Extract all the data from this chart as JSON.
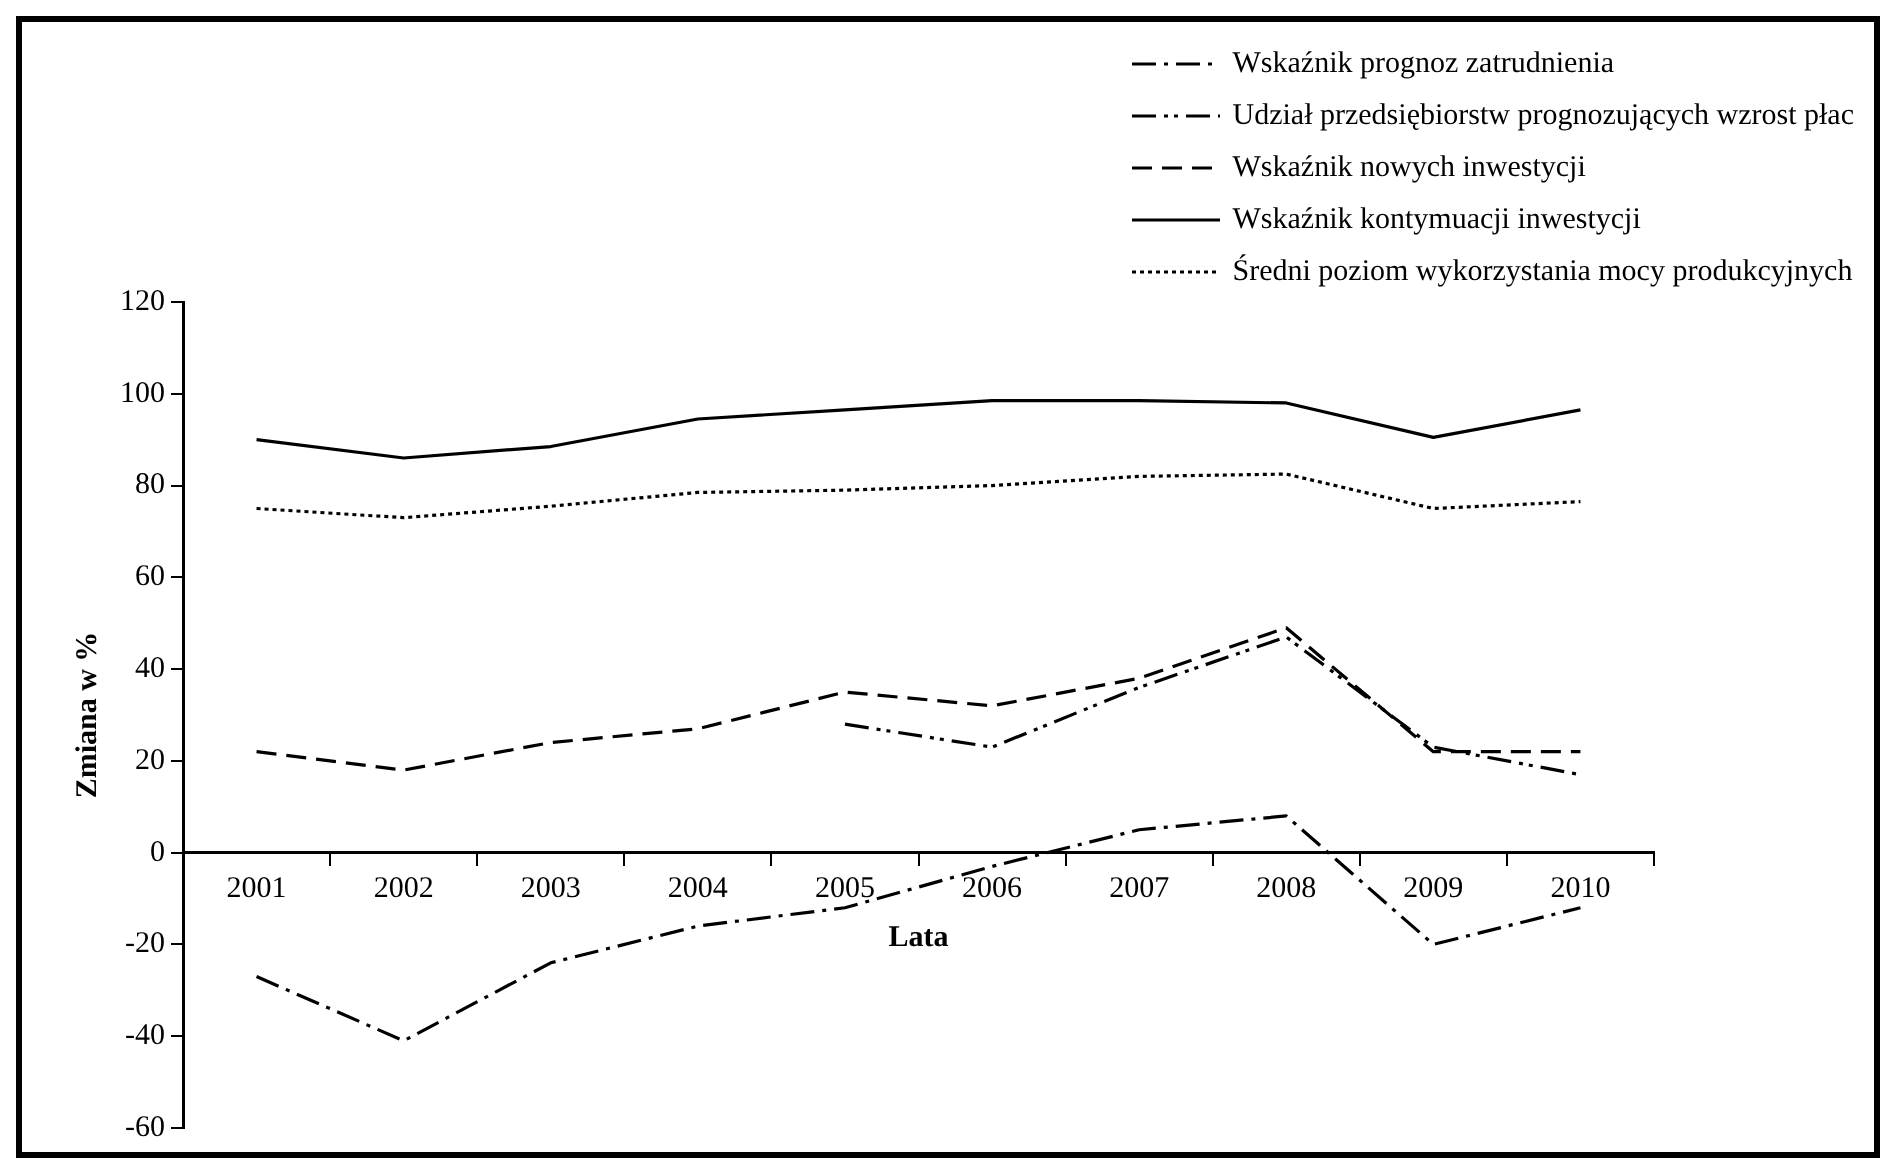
{
  "chart_data": {
    "type": "line",
    "xlabel": "Lata",
    "ylabel": "Zmiana w %",
    "categories": [
      "2001",
      "2002",
      "2003",
      "2004",
      "2005",
      "2006",
      "2007",
      "2008",
      "2009",
      "2010"
    ],
    "series": [
      {
        "name": "Wskaźnik prognoz zatrudnienia",
        "color": "#000000",
        "line_style": "dashdot",
        "values": [
          -27,
          -41,
          -24,
          -16,
          -12,
          -3,
          5,
          8,
          -20,
          -12
        ]
      },
      {
        "name": "Udział przedsiębiorstw prognozujących wzrost płac",
        "color": "#000000",
        "line_style": "dashdotdot",
        "values": [
          null,
          null,
          null,
          null,
          28,
          23,
          36,
          47,
          23,
          17
        ]
      },
      {
        "name": "Wskaźnik nowych inwestycji",
        "color": "#000000",
        "line_style": "dashed",
        "values": [
          22,
          18,
          24,
          27,
          35,
          32,
          38,
          49,
          22,
          22
        ]
      },
      {
        "name": "Wskaźnik kontymuacji inwestycji",
        "color": "#000000",
        "line_style": "solid",
        "values": [
          90,
          86,
          88.5,
          94.5,
          96.5,
          98.5,
          98.5,
          98,
          90.5,
          96.5
        ]
      },
      {
        "name": "Średni poziom wykorzystania mocy produkcyjnych",
        "color": "#000000",
        "line_style": "dotted",
        "values": [
          75,
          73,
          75.5,
          78.5,
          79,
          80,
          82,
          82.5,
          75,
          76.5
        ]
      }
    ],
    "ylim": [
      -60,
      120
    ],
    "yticks": [
      -60,
      -40,
      -20,
      0,
      20,
      40,
      60,
      80,
      100,
      120
    ],
    "grid": false,
    "legend": "top right",
    "marker": "none"
  }
}
